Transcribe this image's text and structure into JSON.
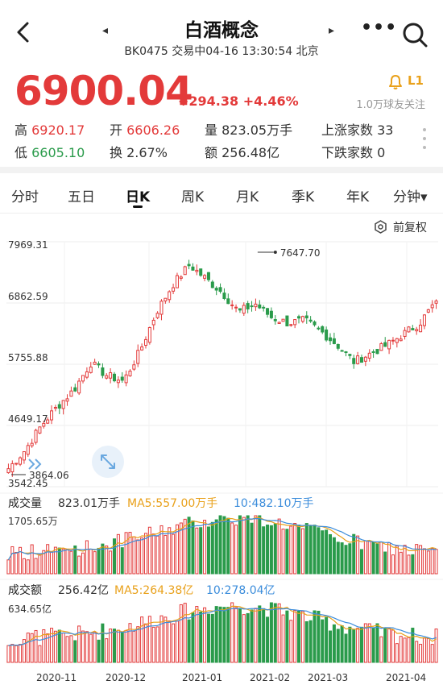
{
  "header": {
    "title": "白酒概念",
    "subtitle": "BK0475 交易中04-16 13:30:54 北京",
    "prev": "◂",
    "next": "▸",
    "more": "•••"
  },
  "quote": {
    "price": "6900.04",
    "change": "+294.38 +4.46%",
    "alert_level": "L1",
    "followers": "1.0万球友关注"
  },
  "stats": {
    "high_label": "高",
    "high": "6920.17",
    "open_label": "开",
    "open": "6606.26",
    "volume_label": "量",
    "volume": "823.05万手",
    "up_label": "上涨家数",
    "up": "33",
    "low_label": "低",
    "low": "6605.10",
    "turnover_label": "换",
    "turnover": "2.67%",
    "amount_label": "额",
    "amount": "256.48亿",
    "down_label": "下跌家数",
    "down": "0"
  },
  "tabs": [
    "分时",
    "五日",
    "日K",
    "周K",
    "月K",
    "季K",
    "年K",
    "分钟▾"
  ],
  "active_tab": "日K",
  "adjust_label": "前复权",
  "volume_panel": {
    "label": "成交量",
    "current": "823.01万手",
    "ma5": "MA5:557.00万手",
    "ma10": "10:482.10万手",
    "max": "1705.65万"
  },
  "amount_panel": {
    "label": "成交额",
    "current": "256.42亿",
    "ma5": "MA5:264.38亿",
    "ma10": "10:278.04亿",
    "max": "634.65亿"
  },
  "colors": {
    "up": "#e33a3a",
    "down": "#2a9b4b",
    "ma5": "#e9a11b",
    "ma10": "#3c8ddb"
  },
  "chart_data": {
    "type": "candlestick",
    "y_ticks": [
      "7969.31",
      "6862.59",
      "5755.88",
      "4649.17",
      "3542.45"
    ],
    "ylim": [
      3542.45,
      7969.31
    ],
    "max_marker": "7647.70",
    "min_marker": "3864.06",
    "x_ticks": [
      "2020-11",
      "2020-12",
      "2021-01",
      "2021-02",
      "2021-03",
      "2021-04"
    ],
    "anchor_closes": [
      3870,
      4200,
      4650,
      5000,
      5300,
      5780,
      5550,
      5450,
      6000,
      6700,
      7200,
      7550,
      7300,
      7050,
      6700,
      6850,
      6600,
      6500,
      6550,
      6350,
      6100,
      5800,
      5950,
      6100,
      6300,
      6500,
      6900
    ]
  }
}
